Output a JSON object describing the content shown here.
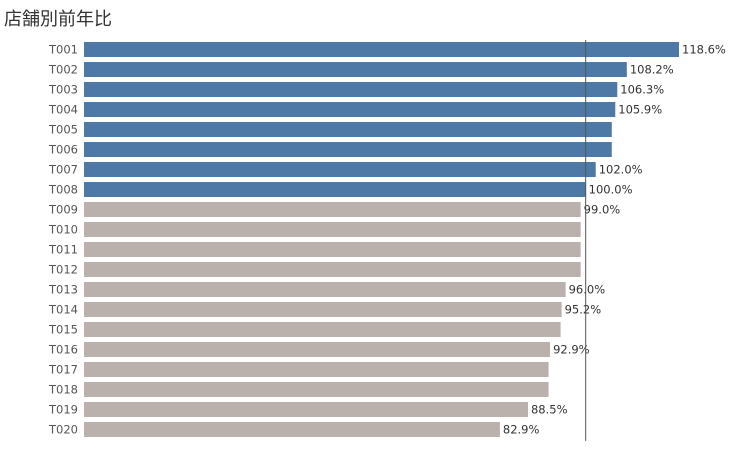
{
  "chart_data": {
    "type": "bar",
    "orientation": "horizontal",
    "title": "店舗別前年比",
    "categories": [
      "T001",
      "T002",
      "T003",
      "T004",
      "T005",
      "T006",
      "T007",
      "T008",
      "T009",
      "T010",
      "T011",
      "T012",
      "T013",
      "T014",
      "T015",
      "T016",
      "T017",
      "T018",
      "T019",
      "T020"
    ],
    "values": [
      118.6,
      108.2,
      106.3,
      105.9,
      105.2,
      105.2,
      102.0,
      100.0,
      99.0,
      99.0,
      99.0,
      99.0,
      96.0,
      95.2,
      95.0,
      92.9,
      92.6,
      92.6,
      88.5,
      82.9
    ],
    "value_labels": [
      "118.6%",
      "108.2%",
      "106.3%",
      "105.9%",
      "",
      "",
      "102.0%",
      "100.0%",
      "99.0%",
      "",
      "",
      "",
      "96.0%",
      "95.2%",
      "",
      "92.9%",
      "",
      "",
      "88.5%",
      "82.9%"
    ],
    "reference_line": 100,
    "colors": {
      "above": "#4e79a7",
      "below": "#bab0ac",
      "reference": "#555555",
      "text": "#333333"
    },
    "grid": false,
    "legend": "none",
    "xlabel": "",
    "ylabel": ""
  }
}
